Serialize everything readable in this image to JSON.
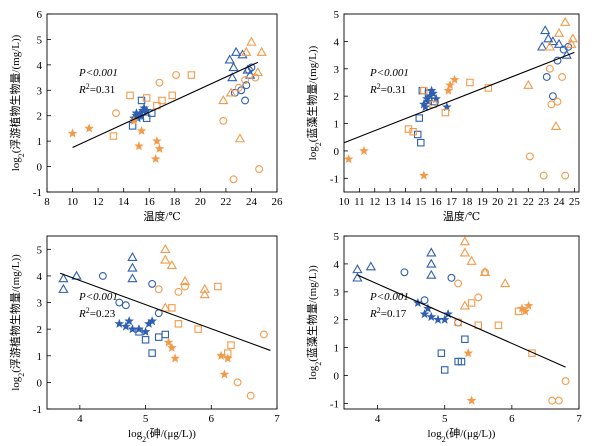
{
  "colors": {
    "blue": "#2f5fb0",
    "orange": "#f39a4a",
    "line": "#000000"
  },
  "chart_data": [
    {
      "type": "scatter",
      "xlabel": "温度/℃",
      "ylabel": "log2(浮游植物生物量/(mg/L))",
      "xlim": [
        8,
        26
      ],
      "ylim": [
        -1,
        6
      ],
      "xticks": [
        8,
        10,
        12,
        14,
        16,
        18,
        20,
        22,
        24,
        26
      ],
      "yticks": [
        -1,
        0,
        1,
        2,
        3,
        4,
        5,
        6
      ],
      "stats": [
        "P<0.001",
        "R2=0.31"
      ],
      "trend": [
        [
          10,
          0.75
        ],
        [
          24.5,
          4.1
        ]
      ],
      "series": [
        {
          "color": "blue",
          "marker": "star",
          "points": [
            [
              14.8,
              1.9
            ],
            [
              15,
              2.0
            ],
            [
              15.1,
              1.9
            ],
            [
              15.3,
              2.1
            ],
            [
              15.5,
              2.2
            ],
            [
              15.6,
              2.3
            ],
            [
              15.8,
              2.2
            ],
            [
              15,
              2.1
            ],
            [
              15.4,
              2.0
            ]
          ]
        },
        {
          "color": "blue",
          "marker": "square",
          "points": [
            [
              14.7,
              1.6
            ],
            [
              15.2,
              2.0
            ],
            [
              15.4,
              2.6
            ],
            [
              15.8,
              1.9
            ],
            [
              16.2,
              2.1
            ]
          ]
        },
        {
          "color": "blue",
          "marker": "triangle",
          "points": [
            [
              22.3,
              4.2
            ],
            [
              22.8,
              4.5
            ],
            [
              22.6,
              3.9
            ],
            [
              23.3,
              4.4
            ],
            [
              23.7,
              3.8
            ],
            [
              23.9,
              3.6
            ],
            [
              22.5,
              3.5
            ]
          ]
        },
        {
          "color": "blue",
          "marker": "circle",
          "points": [
            [
              22.7,
              2.9
            ],
            [
              23.2,
              3.0
            ],
            [
              23.5,
              2.6
            ],
            [
              23.8,
              3.8
            ],
            [
              24.0,
              3.9
            ],
            [
              23.6,
              3.2
            ]
          ]
        },
        {
          "color": "orange",
          "marker": "star",
          "points": [
            [
              10,
              1.3
            ],
            [
              11.3,
              1.5
            ],
            [
              14.8,
              1.8
            ],
            [
              15.2,
              0.8
            ],
            [
              15.4,
              1.4
            ],
            [
              16.6,
              1.0
            ],
            [
              16.8,
              0.7
            ],
            [
              16.5,
              0.3
            ]
          ]
        },
        {
          "color": "orange",
          "marker": "square",
          "points": [
            [
              13.2,
              1.2
            ],
            [
              14.5,
              2.8
            ],
            [
              15.8,
              2.7
            ],
            [
              17.0,
              2.6
            ],
            [
              17.8,
              2.8
            ],
            [
              19.3,
              3.6
            ],
            [
              16.6,
              2.4
            ]
          ]
        },
        {
          "color": "orange",
          "marker": "circle",
          "points": [
            [
              13.4,
              2.1
            ],
            [
              16.8,
              3.3
            ],
            [
              18.1,
              3.6
            ],
            [
              21.8,
              1.8
            ],
            [
              22.6,
              -0.5
            ],
            [
              23.0,
              3.1
            ],
            [
              24.3,
              3.5
            ],
            [
              24.6,
              -0.1
            ],
            [
              23.5,
              3.4
            ]
          ]
        },
        {
          "color": "orange",
          "marker": "triangle",
          "points": [
            [
              21.8,
              2.6
            ],
            [
              22.4,
              2.9
            ],
            [
              23.6,
              4.5
            ],
            [
              24.0,
              4.9
            ],
            [
              24.8,
              4.5
            ],
            [
              24.5,
              3.7
            ],
            [
              23.1,
              1.1
            ]
          ]
        }
      ]
    },
    {
      "type": "scatter",
      "xlabel": "温度/℃",
      "ylabel": "log2(蓝藻生物量/(mg/L))",
      "xlim": [
        10,
        25.3
      ],
      "ylim": [
        -1.5,
        5
      ],
      "xticks": [
        10,
        11,
        12,
        13,
        14,
        15,
        16,
        17,
        18,
        19,
        20,
        21,
        22,
        23,
        24,
        25
      ],
      "yticks": [
        -1,
        0,
        1,
        2,
        3,
        4,
        5
      ],
      "stats": [
        "P<0.001",
        "R2=0.31"
      ],
      "trend": [
        [
          10,
          0.3
        ],
        [
          25,
          3.6
        ]
      ],
      "series": [
        {
          "color": "blue",
          "marker": "star",
          "points": [
            [
              15.2,
              1.7
            ],
            [
              15.4,
              1.9
            ],
            [
              15.5,
              1.8
            ],
            [
              15.6,
              2.0
            ],
            [
              15.8,
              2.1
            ],
            [
              16.0,
              1.9
            ],
            [
              15.3,
              1.6
            ],
            [
              15.7,
              2.2
            ],
            [
              16.7,
              1.6
            ]
          ]
        },
        {
          "color": "blue",
          "marker": "square",
          "points": [
            [
              14.8,
              0.6
            ],
            [
              15.0,
              0.3
            ],
            [
              15.1,
              2.2
            ],
            [
              15.5,
              2.1
            ],
            [
              15.9,
              1.8
            ],
            [
              14.9,
              1.2
            ]
          ]
        },
        {
          "color": "blue",
          "marker": "triangle",
          "points": [
            [
              22.9,
              3.8
            ],
            [
              23.1,
              4.4
            ],
            [
              23.3,
              4.1
            ],
            [
              23.6,
              4.0
            ],
            [
              24.0,
              3.9
            ],
            [
              24.5,
              3.5
            ]
          ]
        },
        {
          "color": "blue",
          "marker": "circle",
          "points": [
            [
              23.2,
              2.7
            ],
            [
              23.6,
              2.0
            ],
            [
              24.3,
              3.7
            ],
            [
              24.6,
              3.8
            ],
            [
              23.9,
              3.3
            ]
          ]
        },
        {
          "color": "orange",
          "marker": "star",
          "points": [
            [
              10.3,
              -0.3
            ],
            [
              11.3,
              0.0
            ],
            [
              15.2,
              -0.9
            ],
            [
              16.9,
              2.4
            ],
            [
              17.2,
              2.6
            ],
            [
              16.8,
              2.2
            ]
          ]
        },
        {
          "color": "orange",
          "marker": "square",
          "points": [
            [
              14.2,
              0.8
            ],
            [
              14.5,
              0.7
            ],
            [
              15.2,
              2.2
            ],
            [
              15.8,
              1.7
            ],
            [
              16.6,
              1.4
            ],
            [
              18.2,
              2.5
            ],
            [
              19.4,
              2.3
            ]
          ]
        },
        {
          "color": "orange",
          "marker": "circle",
          "points": [
            [
              22.1,
              -0.2
            ],
            [
              23.0,
              -0.9
            ],
            [
              23.5,
              1.7
            ],
            [
              23.9,
              1.8
            ],
            [
              23.4,
              3.0
            ],
            [
              24.4,
              -0.9
            ],
            [
              24.2,
              2.7
            ]
          ]
        },
        {
          "color": "orange",
          "marker": "triangle",
          "points": [
            [
              22.0,
              2.4
            ],
            [
              23.4,
              3.8
            ],
            [
              24.0,
              4.3
            ],
            [
              24.4,
              4.7
            ],
            [
              24.8,
              3.9
            ],
            [
              24.9,
              4.1
            ],
            [
              23.8,
              0.9
            ]
          ]
        }
      ]
    },
    {
      "type": "scatter",
      "xlabel": "log2(砷/(μg/L))",
      "ylabel": "log2(浮游植物生物量/(mg/L))",
      "xlim": [
        3.5,
        7
      ],
      "ylim": [
        -1,
        5.5
      ],
      "xticks": [
        4,
        5,
        6,
        7
      ],
      "yticks": [
        -1,
        0,
        1,
        2,
        3,
        4,
        5
      ],
      "stats": [
        "P<0.001",
        "R2=0.23"
      ],
      "trend": [
        [
          3.7,
          4.1
        ],
        [
          6.9,
          1.2
        ]
      ],
      "series": [
        {
          "color": "blue",
          "marker": "star",
          "points": [
            [
              4.6,
              2.2
            ],
            [
              4.7,
              2.1
            ],
            [
              4.8,
              2.0
            ],
            [
              4.9,
              2.0
            ],
            [
              5.0,
              1.9
            ],
            [
              4.75,
              2.3
            ],
            [
              5.05,
              2.2
            ],
            [
              5.1,
              2.3
            ]
          ]
        },
        {
          "color": "blue",
          "marker": "square",
          "points": [
            [
              4.9,
              1.9
            ],
            [
              5.0,
              1.6
            ],
            [
              5.1,
              1.1
            ],
            [
              5.2,
              1.7
            ],
            [
              5.3,
              1.8
            ]
          ]
        },
        {
          "color": "blue",
          "marker": "triangle",
          "points": [
            [
              3.75,
              3.9
            ],
            [
              3.75,
              3.5
            ],
            [
              3.95,
              4.0
            ],
            [
              4.8,
              4.7
            ],
            [
              4.8,
              4.3
            ],
            [
              4.8,
              3.9
            ]
          ]
        },
        {
          "color": "blue",
          "marker": "circle",
          "points": [
            [
              4.35,
              4.0
            ],
            [
              4.6,
              3.0
            ],
            [
              4.7,
              2.9
            ],
            [
              5.1,
              3.7
            ],
            [
              5.2,
              2.6
            ]
          ]
        },
        {
          "color": "orange",
          "marker": "star",
          "points": [
            [
              5.35,
              1.5
            ],
            [
              5.4,
              1.3
            ],
            [
              5.45,
              0.9
            ],
            [
              6.15,
              1.0
            ],
            [
              6.2,
              0.3
            ],
            [
              6.25,
              0.9
            ]
          ]
        },
        {
          "color": "orange",
          "marker": "square",
          "points": [
            [
              5.4,
              2.8
            ],
            [
              5.5,
              2.2
            ],
            [
              5.8,
              2.0
            ],
            [
              6.3,
              1.4
            ],
            [
              6.25,
              1.1
            ],
            [
              6.1,
              3.6
            ]
          ]
        },
        {
          "color": "orange",
          "marker": "circle",
          "points": [
            [
              5.2,
              3.5
            ],
            [
              5.5,
              3.4
            ],
            [
              5.6,
              3.6
            ],
            [
              6.6,
              -0.5
            ],
            [
              6.8,
              1.8
            ],
            [
              6.4,
              0.0
            ]
          ]
        },
        {
          "color": "orange",
          "marker": "triangle",
          "points": [
            [
              5.3,
              5.0
            ],
            [
              5.3,
              4.6
            ],
            [
              5.4,
              4.4
            ],
            [
              5.6,
              3.8
            ],
            [
              5.9,
              3.5
            ],
            [
              5.9,
              3.3
            ],
            [
              5.3,
              2.8
            ]
          ]
        }
      ]
    },
    {
      "type": "scatter",
      "xlabel": "log2(砷/(μg/L))",
      "ylabel": "log2(蓝藻生物量/(mg/L))",
      "xlim": [
        3.5,
        7
      ],
      "ylim": [
        -1.2,
        5
      ],
      "xticks": [
        4,
        5,
        6,
        7
      ],
      "yticks": [
        -1,
        0,
        1,
        2,
        3,
        4,
        5
      ],
      "stats": [
        "P<0.001",
        "R2=0.17"
      ],
      "trend": [
        [
          3.7,
          3.6
        ],
        [
          6.8,
          0.3
        ]
      ],
      "series": [
        {
          "color": "blue",
          "marker": "star",
          "points": [
            [
              4.6,
              2.6
            ],
            [
              4.7,
              2.2
            ],
            [
              4.8,
              2.1
            ],
            [
              4.9,
              2.0
            ],
            [
              5.0,
              2.0
            ],
            [
              4.75,
              2.4
            ],
            [
              5.05,
              2.2
            ]
          ]
        },
        {
          "color": "blue",
          "marker": "square",
          "points": [
            [
              4.95,
              0.8
            ],
            [
              5.2,
              0.5
            ],
            [
              5.25,
              0.5
            ],
            [
              5.3,
              1.3
            ],
            [
              5.0,
              0.2
            ]
          ]
        },
        {
          "color": "blue",
          "marker": "triangle",
          "points": [
            [
              3.7,
              3.8
            ],
            [
              3.7,
              3.5
            ],
            [
              3.9,
              3.9
            ],
            [
              4.8,
              4.4
            ],
            [
              4.8,
              4.0
            ],
            [
              4.8,
              3.6
            ]
          ]
        },
        {
          "color": "blue",
          "marker": "circle",
          "points": [
            [
              4.4,
              3.7
            ],
            [
              4.7,
              2.7
            ],
            [
              5.1,
              3.5
            ],
            [
              5.2,
              1.9
            ]
          ]
        },
        {
          "color": "orange",
          "marker": "star",
          "points": [
            [
              5.35,
              0.8
            ],
            [
              5.4,
              -0.9
            ],
            [
              6.15,
              2.4
            ],
            [
              6.2,
              2.3
            ],
            [
              6.25,
              2.5
            ]
          ]
        },
        {
          "color": "orange",
          "marker": "square",
          "points": [
            [
              5.4,
              2.6
            ],
            [
              5.5,
              1.8
            ],
            [
              5.8,
              1.8
            ],
            [
              6.1,
              2.3
            ],
            [
              6.3,
              0.8
            ],
            [
              5.2,
              1.9
            ]
          ]
        },
        {
          "color": "orange",
          "marker": "circle",
          "points": [
            [
              5.2,
              3.3
            ],
            [
              5.5,
              2.8
            ],
            [
              5.6,
              3.7
            ],
            [
              6.6,
              -0.9
            ],
            [
              6.8,
              -0.2
            ],
            [
              6.7,
              -0.9
            ]
          ]
        },
        {
          "color": "orange",
          "marker": "triangle",
          "points": [
            [
              5.3,
              4.8
            ],
            [
              5.3,
              4.4
            ],
            [
              5.4,
              4.1
            ],
            [
              5.6,
              3.7
            ],
            [
              5.9,
              3.3
            ],
            [
              5.3,
              2.5
            ]
          ]
        }
      ]
    }
  ]
}
